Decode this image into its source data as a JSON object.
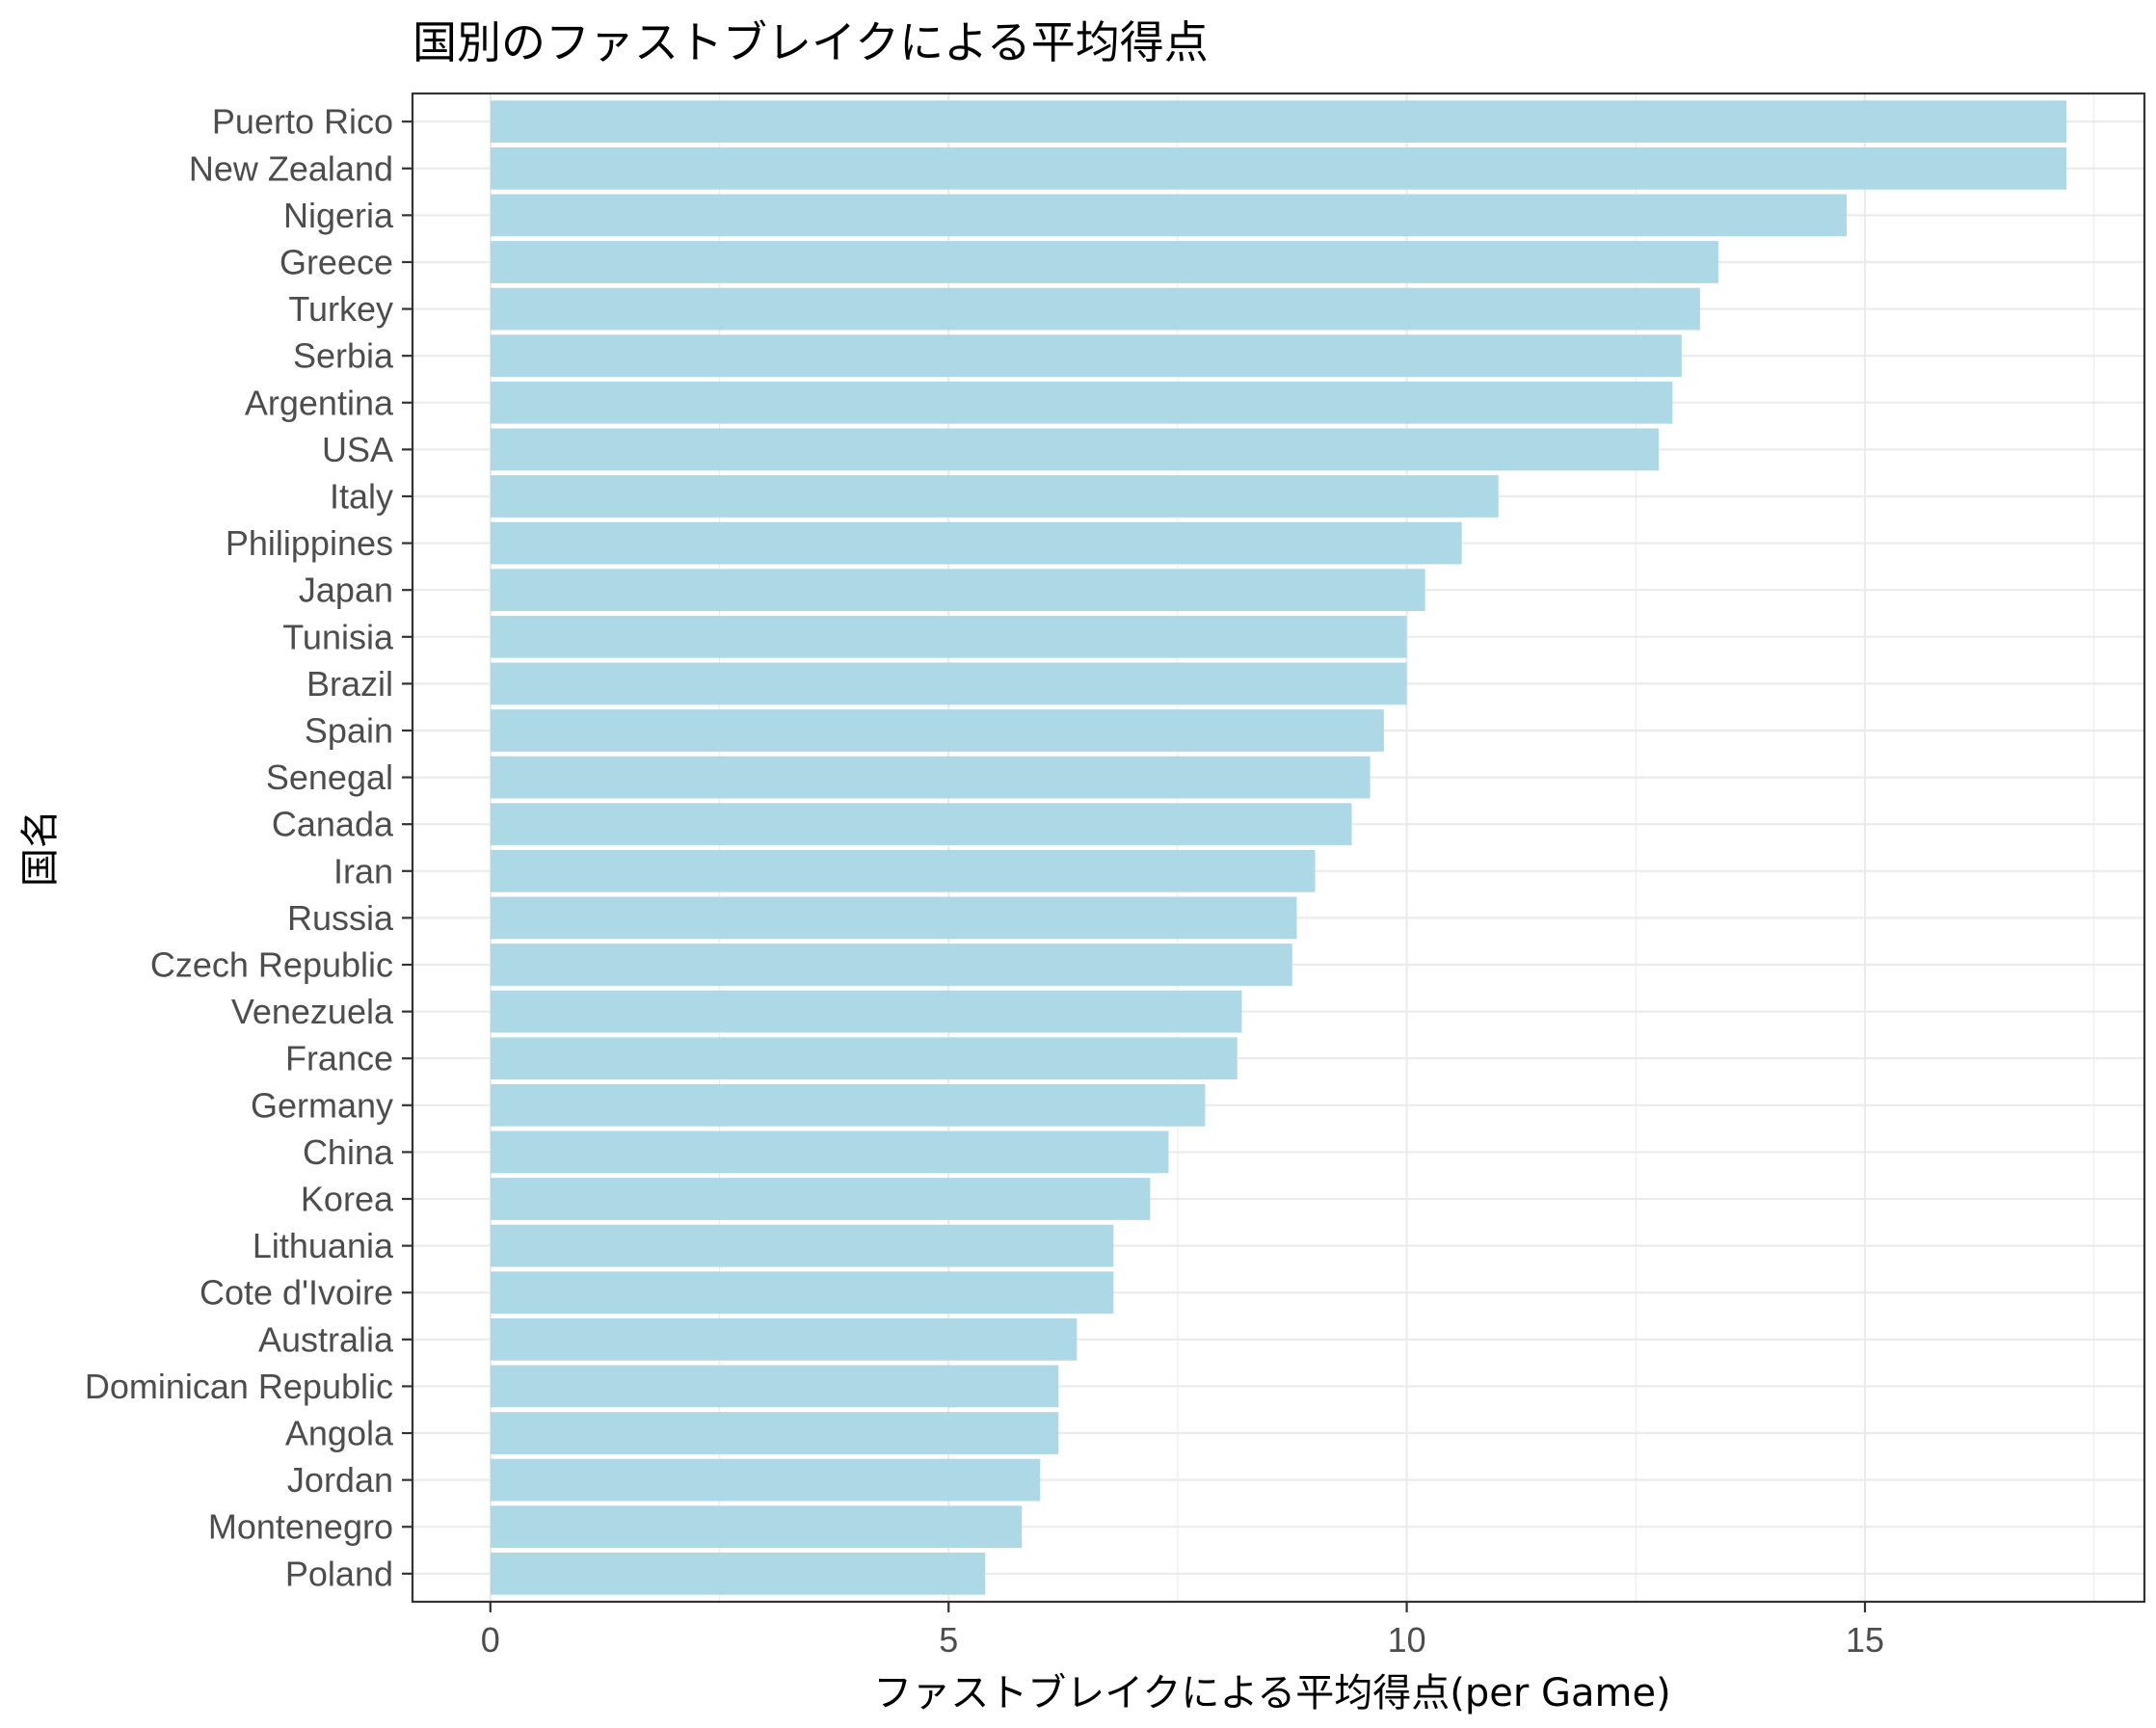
{
  "chart_data": {
    "type": "bar",
    "orientation": "horizontal",
    "title": "国別のファストブレイクによる平均得点",
    "xlabel": "ファストブレイクによる平均得点(per Game)",
    "ylabel": "国名",
    "xlim": [
      -0.85,
      18.05
    ],
    "x_ticks": [
      0,
      5,
      10,
      15
    ],
    "grid": true,
    "bar_color": "#ADD8E6",
    "categories": [
      "Puerto Rico",
      "New Zealand",
      "Nigeria",
      "Greece",
      "Turkey",
      "Serbia",
      "Argentina",
      "USA",
      "Italy",
      "Philippines",
      "Japan",
      "Tunisia",
      "Brazil",
      "Spain",
      "Senegal",
      "Canada",
      "Iran",
      "Russia",
      "Czech Republic",
      "Venezuela",
      "France",
      "Germany",
      "China",
      "Korea",
      "Lithuania",
      "Cote d'Ivoire",
      "Australia",
      "Dominican Republic",
      "Angola",
      "Jordan",
      "Montenegro",
      "Poland"
    ],
    "values": [
      17.2,
      17.2,
      14.8,
      13.4,
      13.2,
      13.0,
      12.9,
      12.75,
      11.0,
      10.6,
      10.2,
      10.0,
      10.0,
      9.75,
      9.6,
      9.4,
      9.0,
      8.8,
      8.75,
      8.2,
      8.15,
      7.8,
      7.4,
      7.2,
      6.8,
      6.8,
      6.4,
      6.2,
      6.2,
      6.0,
      5.8,
      5.4
    ]
  }
}
